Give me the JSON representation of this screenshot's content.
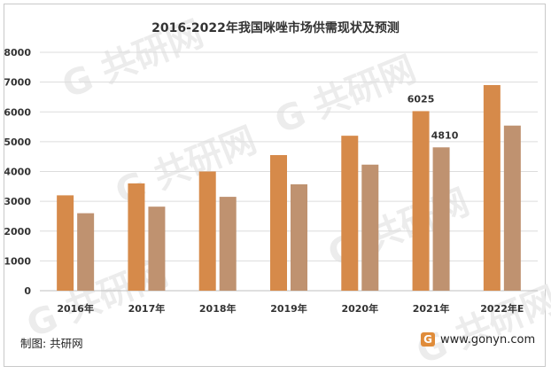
{
  "title": "2016-2022年我国咪唑市场供需现状及预测",
  "source": "制图: 共研网",
  "website": "www.gonyn.com",
  "watermark": "共研网",
  "colors": {
    "supply": "#d68a4a",
    "demand": "#bf9270",
    "grid": "#dcdcdc"
  },
  "chart_data": {
    "type": "bar",
    "categories": [
      "2016年",
      "2017年",
      "2018年",
      "2019年",
      "2020年",
      "2021年",
      "2022年E"
    ],
    "series": [
      {
        "values": [
          3200,
          3600,
          4000,
          4550,
          5200,
          6025,
          6900
        ]
      },
      {
        "values": [
          2600,
          2820,
          3150,
          3570,
          4230,
          4810,
          5540
        ]
      }
    ],
    "data_labels": [
      {
        "series": 0,
        "index": 5,
        "text": "6025"
      },
      {
        "series": 1,
        "index": 5,
        "text": "4810"
      }
    ],
    "yticks": [
      0,
      1000,
      2000,
      3000,
      4000,
      5000,
      6000,
      7000,
      8000
    ],
    "ylim": [
      0,
      8000
    ],
    "xlabel": "",
    "ylabel": "",
    "grid": true
  }
}
